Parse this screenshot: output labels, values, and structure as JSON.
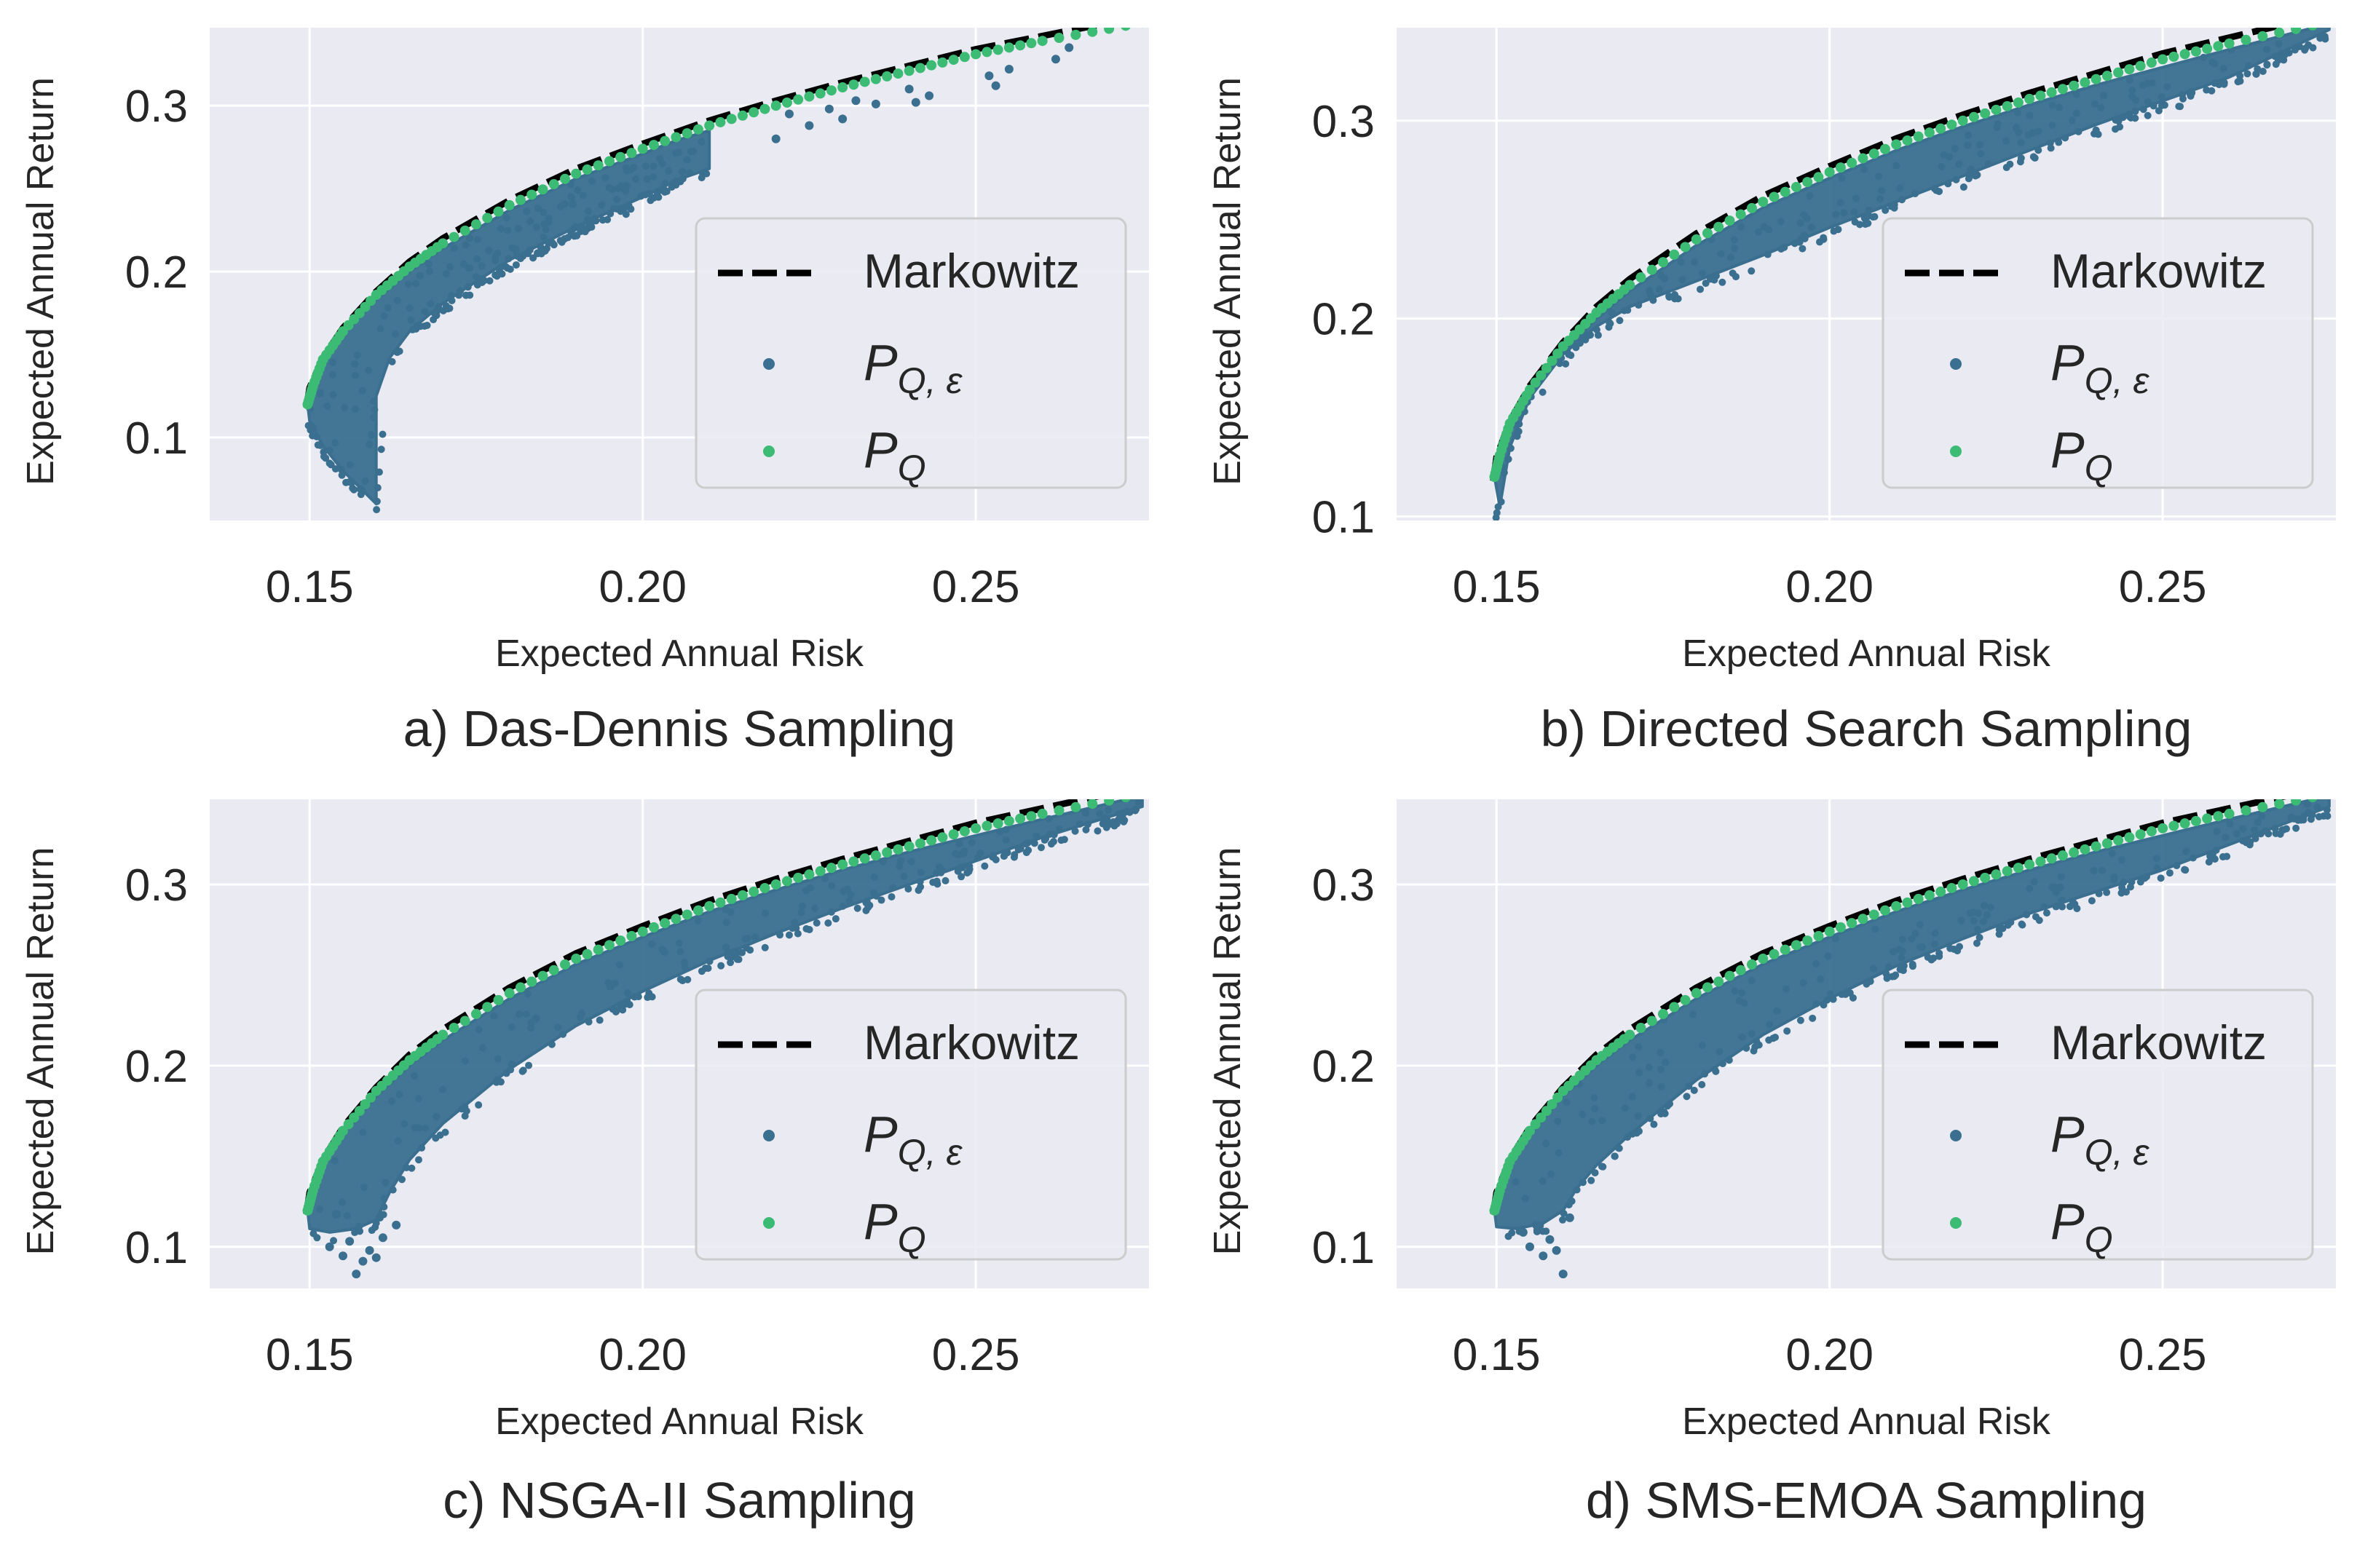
{
  "colors": {
    "plot_background": "#eaeaf2",
    "grid": "#ffffff",
    "frontier_line": "#000000",
    "approx_points": "#3a6f8f",
    "quantum_points": "#3cbb75",
    "text": "#262626"
  },
  "chart_data": [
    {
      "type": "scatter",
      "caption": "a) Das-Dennis Sampling",
      "xlabel": "Expected Annual Risk",
      "ylabel": "Expected Annual Return",
      "xlim": [
        0.135,
        0.276
      ],
      "ylim": [
        0.05,
        0.347
      ],
      "xticks": [
        0.15,
        0.2,
        0.25
      ],
      "xtick_labels": [
        "0.15",
        "0.20",
        "0.25"
      ],
      "yticks": [
        0.1,
        0.2,
        0.3
      ],
      "ytick_labels": [
        "0.1",
        "0.2",
        "0.3"
      ],
      "grid": true,
      "legend_position": "center-right",
      "legend": [
        {
          "marker": "dashed-line",
          "label": "Markowitz"
        },
        {
          "marker": "dot-blue",
          "label": "P",
          "sub": "Q, ε"
        },
        {
          "marker": "dot-green",
          "label": "P",
          "sub": "Q"
        }
      ],
      "series": [
        {
          "name": "Markowitz",
          "kind": "dashed-line",
          "x": [
            0.1495,
            0.15,
            0.152,
            0.155,
            0.16,
            0.165,
            0.17,
            0.18,
            0.19,
            0.2,
            0.21,
            0.22,
            0.23,
            0.24,
            0.25,
            0.26,
            0.27
          ],
          "y": [
            0.118,
            0.13,
            0.148,
            0.166,
            0.188,
            0.206,
            0.22,
            0.243,
            0.262,
            0.277,
            0.291,
            0.303,
            0.314,
            0.324,
            0.334,
            0.342,
            0.35
          ]
        },
        {
          "name": "P_Q",
          "kind": "points",
          "x": [
            0.1497,
            0.1505,
            0.152,
            0.155,
            0.16,
            0.165,
            0.17,
            0.18,
            0.19,
            0.2,
            0.21,
            0.22,
            0.23,
            0.24,
            0.25,
            0.26,
            0.275
          ],
          "y": [
            0.12,
            0.131,
            0.147,
            0.164,
            0.186,
            0.203,
            0.217,
            0.24,
            0.259,
            0.274,
            0.288,
            0.3,
            0.311,
            0.321,
            0.331,
            0.339,
            0.35
          ]
        },
        {
          "name": "P_Q_eps",
          "kind": "band",
          "upper_x": [
            0.1497,
            0.152,
            0.155,
            0.16,
            0.165,
            0.17,
            0.18,
            0.19,
            0.2,
            0.205,
            0.21
          ],
          "upper_y": [
            0.12,
            0.145,
            0.162,
            0.183,
            0.2,
            0.214,
            0.237,
            0.256,
            0.271,
            0.279,
            0.285
          ],
          "lower_x": [
            0.21,
            0.205,
            0.2,
            0.19,
            0.18,
            0.17,
            0.165,
            0.162,
            0.16,
            0.16,
            0.158,
            0.155,
            0.152,
            0.15
          ],
          "lower_y": [
            0.262,
            0.255,
            0.245,
            0.227,
            0.207,
            0.181,
            0.164,
            0.148,
            0.125,
            0.06,
            0.068,
            0.08,
            0.095,
            0.11
          ],
          "count": 1600,
          "scatter_x": [
            0.22,
            0.222,
            0.225,
            0.228,
            0.23,
            0.232,
            0.235,
            0.24,
            0.241,
            0.243,
            0.252,
            0.253,
            0.255,
            0.262,
            0.264
          ],
          "scatter_y": [
            0.28,
            0.295,
            0.288,
            0.298,
            0.292,
            0.303,
            0.301,
            0.31,
            0.302,
            0.306,
            0.318,
            0.312,
            0.322,
            0.328,
            0.335
          ]
        }
      ]
    },
    {
      "type": "scatter",
      "caption": "b) Directed Search Sampling",
      "xlabel": "Expected Annual Risk",
      "ylabel": "Expected Annual Return",
      "xlim": [
        0.135,
        0.276
      ],
      "ylim": [
        0.098,
        0.347
      ],
      "xticks": [
        0.15,
        0.2,
        0.25
      ],
      "xtick_labels": [
        "0.15",
        "0.20",
        "0.25"
      ],
      "yticks": [
        0.1,
        0.2,
        0.3
      ],
      "ytick_labels": [
        "0.1",
        "0.2",
        "0.3"
      ],
      "grid": true,
      "legend_position": "center-right",
      "legend": [
        {
          "marker": "dashed-line",
          "label": "Markowitz"
        },
        {
          "marker": "dot-blue",
          "label": "P",
          "sub": "Q, ε"
        },
        {
          "marker": "dot-green",
          "label": "P",
          "sub": "Q"
        }
      ],
      "series": [
        {
          "name": "Markowitz",
          "kind": "dashed-line",
          "x": [
            0.1495,
            0.15,
            0.152,
            0.155,
            0.16,
            0.165,
            0.17,
            0.18,
            0.19,
            0.2,
            0.21,
            0.22,
            0.23,
            0.24,
            0.25,
            0.26,
            0.27
          ],
          "y": [
            0.118,
            0.13,
            0.148,
            0.166,
            0.188,
            0.206,
            0.22,
            0.243,
            0.262,
            0.277,
            0.291,
            0.303,
            0.314,
            0.324,
            0.334,
            0.342,
            0.35
          ]
        },
        {
          "name": "P_Q",
          "kind": "points",
          "x": [
            0.1497,
            0.1505,
            0.152,
            0.155,
            0.16,
            0.165,
            0.17,
            0.18,
            0.19,
            0.2,
            0.21,
            0.22,
            0.23,
            0.24,
            0.25,
            0.26,
            0.275
          ],
          "y": [
            0.12,
            0.131,
            0.147,
            0.164,
            0.186,
            0.203,
            0.217,
            0.24,
            0.259,
            0.274,
            0.288,
            0.3,
            0.311,
            0.321,
            0.331,
            0.339,
            0.35
          ]
        },
        {
          "name": "P_Q_eps",
          "kind": "band",
          "upper_x": [
            0.1497,
            0.152,
            0.155,
            0.16,
            0.165,
            0.17,
            0.18,
            0.19,
            0.2,
            0.21,
            0.22,
            0.23,
            0.24,
            0.25,
            0.26,
            0.275
          ],
          "upper_y": [
            0.12,
            0.145,
            0.162,
            0.183,
            0.2,
            0.214,
            0.237,
            0.256,
            0.271,
            0.285,
            0.297,
            0.308,
            0.318,
            0.327,
            0.336,
            0.349
          ],
          "lower_x": [
            0.275,
            0.26,
            0.25,
            0.24,
            0.23,
            0.22,
            0.21,
            0.2,
            0.19,
            0.18,
            0.17,
            0.165,
            0.16,
            0.155,
            0.152,
            0.1505
          ],
          "lower_y": [
            0.346,
            0.322,
            0.31,
            0.298,
            0.285,
            0.272,
            0.259,
            0.246,
            0.232,
            0.219,
            0.206,
            0.196,
            0.182,
            0.16,
            0.135,
            0.105
          ],
          "count": 1400,
          "scatter_x": [],
          "scatter_y": []
        }
      ]
    },
    {
      "type": "scatter",
      "caption": "c) NSGA-II Sampling",
      "xlabel": "Expected Annual Risk",
      "ylabel": "Expected Annual Return",
      "xlim": [
        0.135,
        0.276
      ],
      "ylim": [
        0.077,
        0.347
      ],
      "xticks": [
        0.15,
        0.2,
        0.25
      ],
      "xtick_labels": [
        "0.15",
        "0.20",
        "0.25"
      ],
      "yticks": [
        0.1,
        0.2,
        0.3
      ],
      "ytick_labels": [
        "0.1",
        "0.2",
        "0.3"
      ],
      "grid": true,
      "legend_position": "center-right",
      "legend": [
        {
          "marker": "dashed-line",
          "label": "Markowitz"
        },
        {
          "marker": "dot-blue",
          "label": "P",
          "sub": "Q, ε"
        },
        {
          "marker": "dot-green",
          "label": "P",
          "sub": "Q"
        }
      ],
      "series": [
        {
          "name": "Markowitz",
          "kind": "dashed-line",
          "x": [
            0.1495,
            0.15,
            0.152,
            0.155,
            0.16,
            0.165,
            0.17,
            0.18,
            0.19,
            0.2,
            0.21,
            0.22,
            0.23,
            0.24,
            0.25,
            0.26,
            0.27
          ],
          "y": [
            0.118,
            0.13,
            0.148,
            0.166,
            0.188,
            0.206,
            0.22,
            0.243,
            0.262,
            0.277,
            0.291,
            0.303,
            0.314,
            0.324,
            0.334,
            0.342,
            0.35
          ]
        },
        {
          "name": "P_Q",
          "kind": "points",
          "x": [
            0.1497,
            0.1505,
            0.152,
            0.155,
            0.16,
            0.165,
            0.17,
            0.18,
            0.19,
            0.2,
            0.21,
            0.22,
            0.23,
            0.24,
            0.25,
            0.26,
            0.275
          ],
          "y": [
            0.12,
            0.131,
            0.147,
            0.164,
            0.186,
            0.203,
            0.217,
            0.24,
            0.259,
            0.274,
            0.288,
            0.3,
            0.311,
            0.321,
            0.331,
            0.339,
            0.35
          ]
        },
        {
          "name": "P_Q_eps",
          "kind": "band",
          "upper_x": [
            0.1497,
            0.152,
            0.155,
            0.16,
            0.165,
            0.17,
            0.18,
            0.19,
            0.2,
            0.21,
            0.22,
            0.23,
            0.24,
            0.25,
            0.26,
            0.275
          ],
          "upper_y": [
            0.12,
            0.145,
            0.162,
            0.183,
            0.2,
            0.214,
            0.237,
            0.256,
            0.271,
            0.285,
            0.297,
            0.308,
            0.318,
            0.327,
            0.336,
            0.349
          ],
          "lower_x": [
            0.275,
            0.26,
            0.25,
            0.24,
            0.23,
            0.22,
            0.21,
            0.2,
            0.19,
            0.18,
            0.17,
            0.165,
            0.162,
            0.16,
            0.157,
            0.153,
            0.15
          ],
          "lower_y": [
            0.343,
            0.326,
            0.313,
            0.3,
            0.287,
            0.273,
            0.258,
            0.241,
            0.222,
            0.198,
            0.168,
            0.148,
            0.13,
            0.115,
            0.11,
            0.108,
            0.11
          ],
          "count": 1500,
          "scatter_x": [
            0.153,
            0.155,
            0.156,
            0.158,
            0.159,
            0.16,
            0.161,
            0.163,
            0.157,
            0.154
          ],
          "scatter_y": [
            0.1,
            0.095,
            0.103,
            0.092,
            0.098,
            0.094,
            0.105,
            0.112,
            0.085,
            0.118
          ]
        }
      ]
    },
    {
      "type": "scatter",
      "caption": "d) SMS-EMOA Sampling",
      "xlabel": "Expected Annual Risk",
      "ylabel": "Expected Annual Return",
      "xlim": [
        0.135,
        0.276
      ],
      "ylim": [
        0.077,
        0.347
      ],
      "xticks": [
        0.15,
        0.2,
        0.25
      ],
      "xtick_labels": [
        "0.15",
        "0.20",
        "0.25"
      ],
      "yticks": [
        0.1,
        0.2,
        0.3
      ],
      "ytick_labels": [
        "0.1",
        "0.2",
        "0.3"
      ],
      "grid": true,
      "legend_position": "center-right",
      "legend": [
        {
          "marker": "dashed-line",
          "label": "Markowitz"
        },
        {
          "marker": "dot-blue",
          "label": "P",
          "sub": "Q, ε"
        },
        {
          "marker": "dot-green",
          "label": "P",
          "sub": "Q"
        }
      ],
      "series": [
        {
          "name": "Markowitz",
          "kind": "dashed-line",
          "x": [
            0.1495,
            0.15,
            0.152,
            0.155,
            0.16,
            0.165,
            0.17,
            0.18,
            0.19,
            0.2,
            0.21,
            0.22,
            0.23,
            0.24,
            0.25,
            0.26,
            0.27
          ],
          "y": [
            0.118,
            0.13,
            0.148,
            0.166,
            0.188,
            0.206,
            0.22,
            0.243,
            0.262,
            0.277,
            0.291,
            0.303,
            0.314,
            0.324,
            0.334,
            0.342,
            0.35
          ]
        },
        {
          "name": "P_Q",
          "kind": "points",
          "x": [
            0.1497,
            0.1505,
            0.152,
            0.155,
            0.16,
            0.165,
            0.17,
            0.18,
            0.19,
            0.2,
            0.21,
            0.22,
            0.23,
            0.24,
            0.25,
            0.26,
            0.275
          ],
          "y": [
            0.12,
            0.131,
            0.147,
            0.164,
            0.186,
            0.203,
            0.217,
            0.24,
            0.259,
            0.274,
            0.288,
            0.3,
            0.311,
            0.321,
            0.331,
            0.339,
            0.35
          ]
        },
        {
          "name": "P_Q_eps",
          "kind": "band",
          "upper_x": [
            0.1497,
            0.152,
            0.155,
            0.16,
            0.165,
            0.17,
            0.18,
            0.19,
            0.2,
            0.21,
            0.22,
            0.23,
            0.24,
            0.25,
            0.26,
            0.275
          ],
          "upper_y": [
            0.12,
            0.145,
            0.162,
            0.183,
            0.2,
            0.214,
            0.237,
            0.256,
            0.271,
            0.285,
            0.297,
            0.308,
            0.318,
            0.327,
            0.336,
            0.349
          ],
          "lower_x": [
            0.275,
            0.26,
            0.25,
            0.24,
            0.23,
            0.22,
            0.21,
            0.2,
            0.19,
            0.18,
            0.17,
            0.165,
            0.162,
            0.16,
            0.157,
            0.153,
            0.15
          ],
          "lower_y": [
            0.343,
            0.322,
            0.308,
            0.296,
            0.284,
            0.27,
            0.255,
            0.237,
            0.217,
            0.192,
            0.162,
            0.145,
            0.132,
            0.12,
            0.113,
            0.11,
            0.111
          ],
          "count": 1500,
          "scatter_x": [
            0.154,
            0.155,
            0.157,
            0.158,
            0.159,
            0.16,
            0.156,
            0.161
          ],
          "scatter_y": [
            0.108,
            0.1,
            0.095,
            0.104,
            0.098,
            0.085,
            0.112,
            0.116
          ]
        }
      ]
    }
  ]
}
